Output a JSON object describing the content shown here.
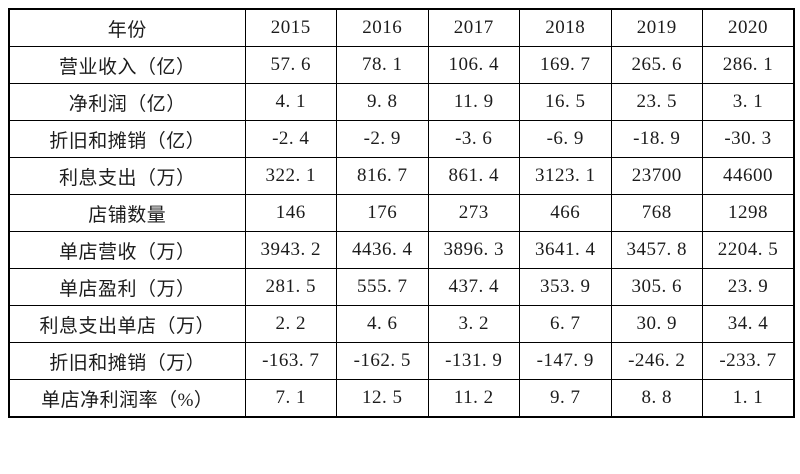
{
  "chart_data": {
    "type": "table",
    "title": "",
    "header": {
      "row_label": "年份",
      "columns": [
        "2015",
        "2016",
        "2017",
        "2018",
        "2019",
        "2020"
      ]
    },
    "rows": [
      {
        "label": "营业收入（亿）",
        "values": [
          57.6,
          78.1,
          106.4,
          169.7,
          265.6,
          286.1
        ]
      },
      {
        "label": "净利润（亿）",
        "values": [
          4.1,
          9.8,
          11.9,
          16.5,
          23.5,
          3.1
        ]
      },
      {
        "label": "折旧和摊销（亿）",
        "values": [
          -2.4,
          -2.9,
          -3.6,
          -6.9,
          -18.9,
          -30.3
        ]
      },
      {
        "label": "利息支出（万）",
        "values": [
          322.1,
          816.7,
          861.4,
          3123.1,
          23700,
          44600
        ]
      },
      {
        "label": "店铺数量",
        "values": [
          146,
          176,
          273,
          466,
          768,
          1298
        ]
      },
      {
        "label": "单店营收（万）",
        "values": [
          3943.2,
          4436.4,
          3896.3,
          3641.4,
          3457.8,
          2204.5
        ]
      },
      {
        "label": "单店盈利（万）",
        "values": [
          281.5,
          555.7,
          437.4,
          353.9,
          305.6,
          23.9
        ]
      },
      {
        "label": "利息支出单店（万）",
        "values": [
          2.2,
          4.6,
          3.2,
          6.7,
          30.9,
          34.4
        ]
      },
      {
        "label": "折旧和摊销（万）",
        "values": [
          -163.7,
          -162.5,
          -131.9,
          -147.9,
          -246.2,
          -233.7
        ]
      },
      {
        "label": "单店净利润率（%）",
        "values": [
          7.1,
          12.5,
          11.2,
          9.7,
          8.8,
          1.1
        ]
      }
    ],
    "layout": {
      "grid": "all-borders",
      "outer_border": "thick",
      "cell_alignment": "center"
    }
  },
  "style": {
    "background": "#ffffff",
    "border_color": "#000000",
    "text_color": "#1c1c1c"
  }
}
